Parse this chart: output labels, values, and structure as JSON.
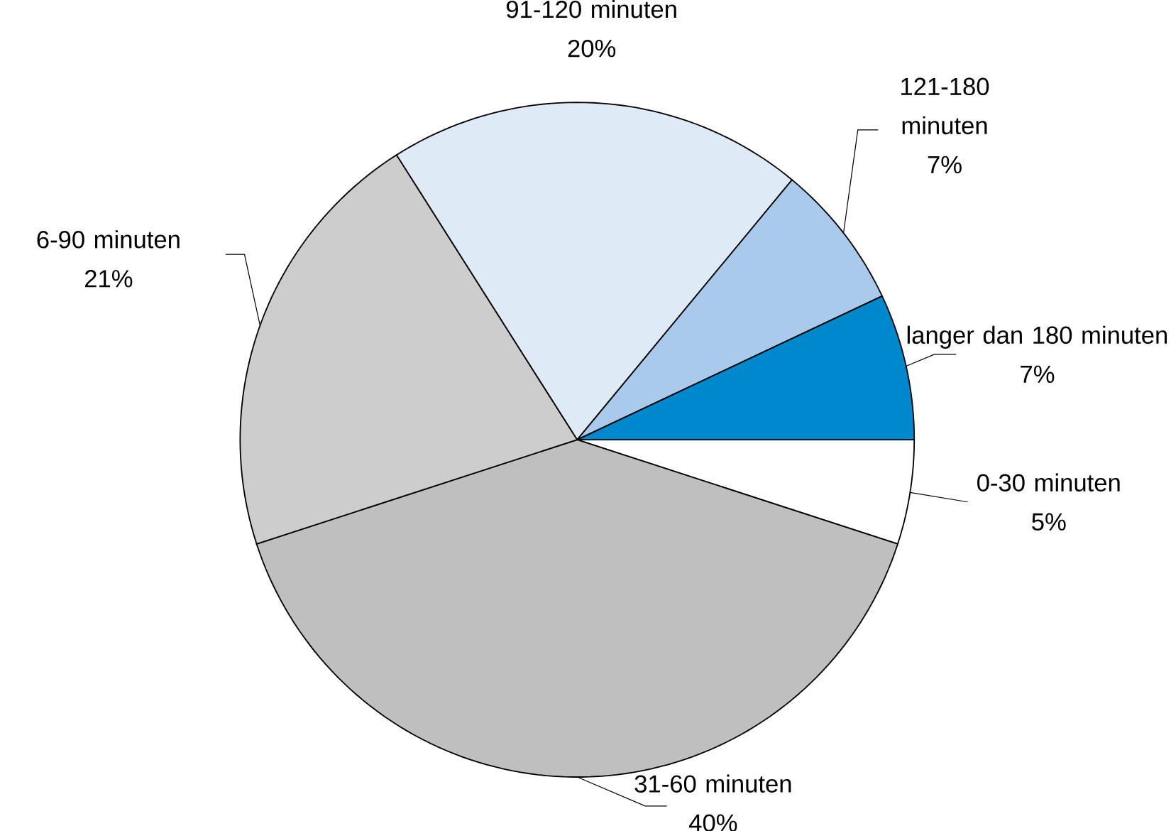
{
  "chart_data": {
    "type": "pie",
    "categories": [
      "0-30 minuten",
      "31-60 minuten",
      "6-90 minuten",
      "91-120 minuten",
      "121-180 minuten",
      "langer dan 180 minuten"
    ],
    "values": [
      5,
      40,
      21,
      20,
      7,
      7
    ],
    "value_labels": [
      "5%",
      "40%",
      "21%",
      "20%",
      "7%",
      "7%"
    ],
    "colors": [
      "#ffffff",
      "#bfbfbf",
      "#cdcdcd",
      "#dfeaf7",
      "#a9caeb",
      "#0088cc"
    ]
  }
}
